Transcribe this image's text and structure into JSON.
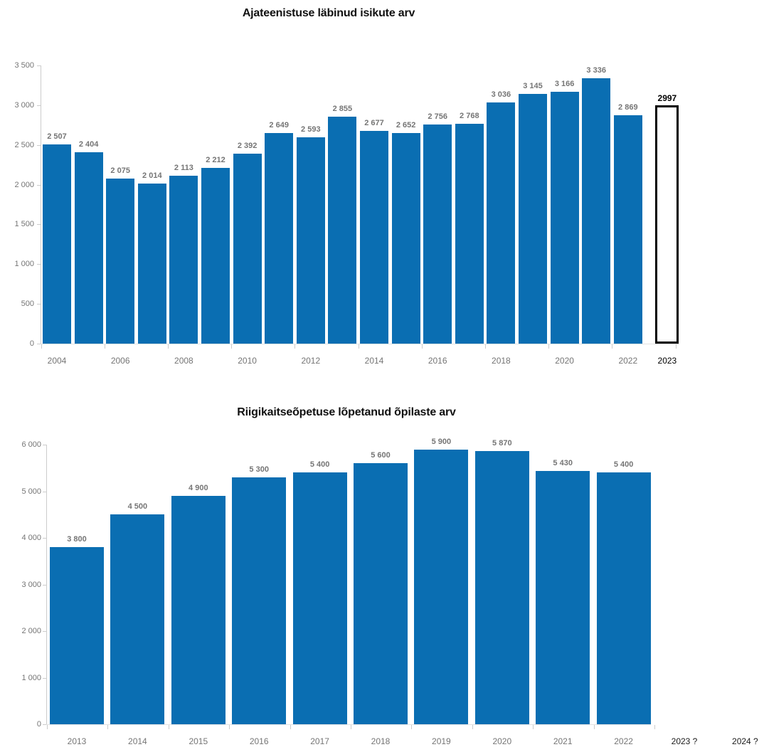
{
  "page": {
    "background": "#ffffff"
  },
  "chart_data": [
    {
      "type": "bar",
      "title": "Ajateenistuse läbinud isikute arv",
      "xlabel": "",
      "ylabel": "",
      "ylim": [
        0,
        3500
      ],
      "ytick_interval": 500,
      "grid": false,
      "legend": false,
      "colors": {
        "bar": "#0a6eb2",
        "value_label": "#757575",
        "axis_label": "#757575",
        "emphasis_label": "#000000",
        "forecast_border": "#000000",
        "forecast_fill": "#ffffff"
      },
      "yticks": [
        {
          "value": 0,
          "label": "0"
        },
        {
          "value": 500,
          "label": "500"
        },
        {
          "value": 1000,
          "label": "1 000"
        },
        {
          "value": 1500,
          "label": "1 500"
        },
        {
          "value": 2000,
          "label": "2 000"
        },
        {
          "value": 2500,
          "label": "2 500"
        },
        {
          "value": 3000,
          "label": "3 000"
        },
        {
          "value": 3500,
          "label": "3 500"
        }
      ],
      "bars": [
        {
          "year": 2004,
          "value": 2507,
          "label": "2 507"
        },
        {
          "year": 2005,
          "value": 2404,
          "label": "2 404"
        },
        {
          "year": 2006,
          "value": 2075,
          "label": "2 075"
        },
        {
          "year": 2007,
          "value": 2014,
          "label": "2 014"
        },
        {
          "year": 2008,
          "value": 2113,
          "label": "2 113"
        },
        {
          "year": 2009,
          "value": 2212,
          "label": "2 212"
        },
        {
          "year": 2010,
          "value": 2392,
          "label": "2 392"
        },
        {
          "year": 2011,
          "value": 2649,
          "label": "2 649"
        },
        {
          "year": 2012,
          "value": 2593,
          "label": "2 593"
        },
        {
          "year": 2013,
          "value": 2855,
          "label": "2 855"
        },
        {
          "year": 2014,
          "value": 2677,
          "label": "2 677"
        },
        {
          "year": 2015,
          "value": 2652,
          "label": "2 652"
        },
        {
          "year": 2016,
          "value": 2756,
          "label": "2 756"
        },
        {
          "year": 2017,
          "value": 2768,
          "label": "2 768"
        },
        {
          "year": 2018,
          "value": 3036,
          "label": "3 036"
        },
        {
          "year": 2019,
          "value": 3145,
          "label": "3 145"
        },
        {
          "year": 2020,
          "value": 3166,
          "label": "3 166"
        },
        {
          "year": 2021,
          "value": 3336,
          "label": "3 336"
        },
        {
          "year": 2022,
          "value": 2869,
          "label": "2 869"
        },
        {
          "year": 2023,
          "value": 2997,
          "label": "2997",
          "forecast": true
        }
      ],
      "xticks": [
        {
          "index": 0,
          "label": "2004"
        },
        {
          "index": 2,
          "label": "2006"
        },
        {
          "index": 4,
          "label": "2008"
        },
        {
          "index": 6,
          "label": "2010"
        },
        {
          "index": 8,
          "label": "2012"
        },
        {
          "index": 10,
          "label": "2014"
        },
        {
          "index": 12,
          "label": "2016"
        },
        {
          "index": 14,
          "label": "2018"
        },
        {
          "index": 16,
          "label": "2020"
        },
        {
          "index": 18,
          "label": "2022"
        },
        {
          "index": 19,
          "label": "2023",
          "emphasis": true
        }
      ]
    },
    {
      "type": "bar",
      "title": "Riigikaitseõpetuse lõpetanud õpilaste arv",
      "xlabel": "",
      "ylabel": "",
      "ylim": [
        0,
        6000
      ],
      "ytick_interval": 1000,
      "grid": false,
      "legend": false,
      "colors": {
        "bar": "#0a6eb2",
        "value_label": "#757575",
        "axis_label": "#757575",
        "emphasis_label": "#1a1a1a"
      },
      "yticks": [
        {
          "value": 0,
          "label": "0"
        },
        {
          "value": 1000,
          "label": "1 000"
        },
        {
          "value": 2000,
          "label": "2 000"
        },
        {
          "value": 3000,
          "label": "3 000"
        },
        {
          "value": 4000,
          "label": "4 000"
        },
        {
          "value": 5000,
          "label": "5 000"
        },
        {
          "value": 6000,
          "label": "6 000"
        }
      ],
      "bars": [
        {
          "year": 2013,
          "value": 3800,
          "label": "3 800"
        },
        {
          "year": 2014,
          "value": 4500,
          "label": "4 500"
        },
        {
          "year": 2015,
          "value": 4900,
          "label": "4 900"
        },
        {
          "year": 2016,
          "value": 5300,
          "label": "5 300"
        },
        {
          "year": 2017,
          "value": 5400,
          "label": "5 400"
        },
        {
          "year": 2018,
          "value": 5600,
          "label": "5 600"
        },
        {
          "year": 2019,
          "value": 5900,
          "label": "5 900"
        },
        {
          "year": 2020,
          "value": 5870,
          "label": "5 870"
        },
        {
          "year": 2021,
          "value": 5430,
          "label": "5 430"
        },
        {
          "year": 2022,
          "value": 5400,
          "label": "5 400"
        }
      ],
      "xticks": [
        {
          "index": 0,
          "label": "2013"
        },
        {
          "index": 1,
          "label": "2014"
        },
        {
          "index": 2,
          "label": "2015"
        },
        {
          "index": 3,
          "label": "2016"
        },
        {
          "index": 4,
          "label": "2017"
        },
        {
          "index": 5,
          "label": "2018"
        },
        {
          "index": 6,
          "label": "2019"
        },
        {
          "index": 7,
          "label": "2020"
        },
        {
          "index": 8,
          "label": "2021"
        },
        {
          "index": 9,
          "label": "2022"
        },
        {
          "index": 10,
          "label": "2023 ?",
          "emphasis": true
        },
        {
          "index": 11,
          "label": "2024 ?",
          "emphasis": true
        }
      ]
    }
  ]
}
